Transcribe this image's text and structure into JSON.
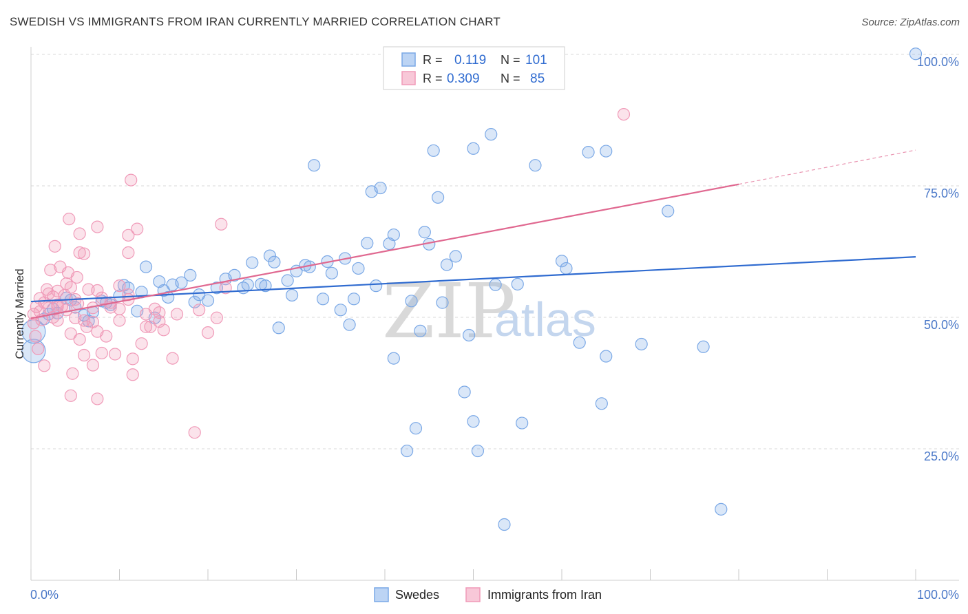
{
  "title": "SWEDISH VS IMMIGRANTS FROM IRAN CURRENTLY MARRIED CORRELATION CHART",
  "source": "Source: ZipAtlas.com",
  "watermark": {
    "zip": "ZIP",
    "atlas": "atlas"
  },
  "legend": {
    "r_label": "R =",
    "n_label": "N =",
    "rows": [
      {
        "r": "0.119",
        "n": "101",
        "color": "#7aa8e6"
      },
      {
        "r": "0.309",
        "n": "85",
        "color": "#f09ab8"
      }
    ]
  },
  "chart_data": {
    "type": "scatter",
    "title": "SWEDISH VS IMMIGRANTS FROM IRAN CURRENTLY MARRIED CORRELATION CHART",
    "xlabel": "",
    "ylabel": "Currently Married",
    "x_range": [
      0,
      100
    ],
    "y_range": [
      0,
      100
    ],
    "x_tick_labels": [
      "0.0%",
      "100.0%"
    ],
    "y_tick_labels": [
      "25.0%",
      "50.0%",
      "75.0%",
      "100.0%"
    ],
    "y_ticks": [
      25,
      50,
      75,
      100
    ],
    "grid": true,
    "legend_position": "top-center",
    "series": [
      {
        "name": "Swedes",
        "color": "#7aa8e6",
        "line_color": "#2f6bd0",
        "r": 0.119,
        "n": 101,
        "trend": {
          "x0": 0,
          "y0": 53.0,
          "x1": 100,
          "y1": 61.5
        },
        "points": [
          [
            0.3,
            47.3
          ],
          [
            0.3,
            43.6
          ],
          [
            1.5,
            49.7
          ],
          [
            2,
            50.6
          ],
          [
            2.5,
            51.6
          ],
          [
            3,
            50.8
          ],
          [
            4,
            53.7
          ],
          [
            4.5,
            53.3
          ],
          [
            5,
            51.9
          ],
          [
            6,
            50.4
          ],
          [
            6.5,
            49.3
          ],
          [
            7,
            51.0
          ],
          [
            8,
            53.1
          ],
          [
            8.5,
            52.8
          ],
          [
            9,
            52.4
          ],
          [
            10,
            54.1
          ],
          [
            10.5,
            56.1
          ],
          [
            11,
            55.6
          ],
          [
            12,
            51.2
          ],
          [
            12.5,
            54.8
          ],
          [
            13,
            59.6
          ],
          [
            14,
            49.9
          ],
          [
            14.5,
            56.8
          ],
          [
            15,
            55.1
          ],
          [
            15.5,
            53.8
          ],
          [
            16,
            56.2
          ],
          [
            17,
            56.6
          ],
          [
            18,
            58.0
          ],
          [
            18.5,
            52.9
          ],
          [
            19,
            54.3
          ],
          [
            20,
            53.2
          ],
          [
            21,
            55.6
          ],
          [
            22,
            57.3
          ],
          [
            23,
            58.0
          ],
          [
            24,
            55.6
          ],
          [
            24.5,
            56.2
          ],
          [
            25,
            60.4
          ],
          [
            26,
            56.3
          ],
          [
            26.5,
            56.0
          ],
          [
            27,
            61.7
          ],
          [
            27.5,
            60.5
          ],
          [
            28,
            48.0
          ],
          [
            29,
            57.0
          ],
          [
            29.5,
            54.2
          ],
          [
            30,
            58.8
          ],
          [
            31,
            59.9
          ],
          [
            31.5,
            59.6
          ],
          [
            32,
            78.9
          ],
          [
            33,
            53.5
          ],
          [
            33.5,
            60.6
          ],
          [
            34,
            58.4
          ],
          [
            35,
            51.4
          ],
          [
            35.5,
            61.2
          ],
          [
            36,
            48.6
          ],
          [
            36.5,
            53.5
          ],
          [
            37,
            59.3
          ],
          [
            38,
            64.1
          ],
          [
            38.5,
            73.9
          ],
          [
            39,
            56.0
          ],
          [
            39.5,
            74.6
          ],
          [
            40.5,
            64.0
          ],
          [
            41,
            65.7
          ],
          [
            41,
            42.2
          ],
          [
            42.5,
            24.6
          ],
          [
            43,
            53.1
          ],
          [
            43.5,
            28.9
          ],
          [
            44,
            47.4
          ],
          [
            44.5,
            66.2
          ],
          [
            45,
            63.9
          ],
          [
            45.5,
            81.7
          ],
          [
            46,
            72.8
          ],
          [
            46.5,
            52.8
          ],
          [
            47,
            60.0
          ],
          [
            47,
            100.3
          ],
          [
            48,
            61.6
          ],
          [
            49,
            35.8
          ],
          [
            49.5,
            46.6
          ],
          [
            50,
            30.2
          ],
          [
            50,
            82.1
          ],
          [
            50.5,
            24.6
          ],
          [
            52,
            84.8
          ],
          [
            52.5,
            56.2
          ],
          [
            53.5,
            10.6
          ],
          [
            55,
            56.3
          ],
          [
            55.5,
            29.9
          ],
          [
            57,
            78.9
          ],
          [
            60,
            60.7
          ],
          [
            60.5,
            59.3
          ],
          [
            62,
            45.2
          ],
          [
            63,
            81.4
          ],
          [
            64.5,
            33.6
          ],
          [
            65,
            42.6
          ],
          [
            65,
            81.6
          ],
          [
            69,
            44.9
          ],
          [
            72,
            70.2
          ],
          [
            76,
            44.4
          ],
          [
            78,
            13.5
          ],
          [
            100,
            100.1
          ]
        ]
      },
      {
        "name": "Immigrants from Iran",
        "color": "#f09ab8",
        "line_color": "#e06890",
        "r": 0.309,
        "n": 85,
        "trend": {
          "x0": 0,
          "y0": 49.8,
          "x1": 80,
          "y1": 75.3,
          "dash_to": {
            "x": 100,
            "y": 81.8
          }
        },
        "points": [
          [
            0.3,
            50.6
          ],
          [
            0.3,
            48.9
          ],
          [
            0.5,
            46.4
          ],
          [
            0.6,
            52.0
          ],
          [
            0.8,
            44.0
          ],
          [
            1,
            51.1
          ],
          [
            1,
            53.6
          ],
          [
            1.2,
            49.5
          ],
          [
            1.5,
            52.8
          ],
          [
            1.5,
            40.8
          ],
          [
            1.8,
            55.3
          ],
          [
            2,
            54.5
          ],
          [
            2,
            51.8
          ],
          [
            2.2,
            59.0
          ],
          [
            2.5,
            50.0
          ],
          [
            2.5,
            53.9
          ],
          [
            2.7,
            63.5
          ],
          [
            3,
            52.4
          ],
          [
            3,
            55.0
          ],
          [
            3,
            49.4
          ],
          [
            3.3,
            59.6
          ],
          [
            3.5,
            52.1
          ],
          [
            3.8,
            54.2
          ],
          [
            4,
            56.4
          ],
          [
            4,
            51.4
          ],
          [
            4.2,
            58.5
          ],
          [
            4.3,
            68.7
          ],
          [
            4.5,
            55.7
          ],
          [
            4.5,
            46.9
          ],
          [
            4.5,
            35.1
          ],
          [
            4.7,
            39.3
          ],
          [
            5,
            53.4
          ],
          [
            5,
            49.9
          ],
          [
            5.2,
            57.6
          ],
          [
            5.3,
            52.6
          ],
          [
            5.5,
            62.3
          ],
          [
            5.5,
            45.8
          ],
          [
            5.5,
            65.9
          ],
          [
            6,
            62.1
          ],
          [
            6,
            42.8
          ],
          [
            6,
            49.4
          ],
          [
            6.3,
            48.2
          ],
          [
            6.5,
            55.3
          ],
          [
            7,
            51.8
          ],
          [
            7,
            49.1
          ],
          [
            7,
            40.9
          ],
          [
            7.5,
            55.1
          ],
          [
            7.5,
            47.3
          ],
          [
            7.5,
            34.5
          ],
          [
            7.5,
            67.2
          ],
          [
            8,
            53.7
          ],
          [
            8,
            43.2
          ],
          [
            8.5,
            46.4
          ],
          [
            9,
            52.8
          ],
          [
            9,
            51.9
          ],
          [
            9.5,
            43.0
          ],
          [
            10,
            56.0
          ],
          [
            10,
            51.6
          ],
          [
            10,
            49.4
          ],
          [
            11,
            53.4
          ],
          [
            11,
            65.6
          ],
          [
            11,
            62.3
          ],
          [
            11,
            54.3
          ],
          [
            11.3,
            76.1
          ],
          [
            11.5,
            39.1
          ],
          [
            11.5,
            42.1
          ],
          [
            12,
            66.8
          ],
          [
            12.5,
            45.0
          ],
          [
            13,
            50.6
          ],
          [
            13,
            48.2
          ],
          [
            13.5,
            48.2
          ],
          [
            14,
            51.6
          ],
          [
            14.5,
            50.9
          ],
          [
            14.5,
            49.2
          ],
          [
            15,
            47.6
          ],
          [
            16,
            42.2
          ],
          [
            16.5,
            50.6
          ],
          [
            18.5,
            28.1
          ],
          [
            19,
            51.4
          ],
          [
            20,
            47.1
          ],
          [
            21,
            49.9
          ],
          [
            21.5,
            67.7
          ],
          [
            22,
            55.6
          ],
          [
            67,
            88.6
          ],
          [
            3,
            52.0
          ]
        ]
      }
    ]
  }
}
